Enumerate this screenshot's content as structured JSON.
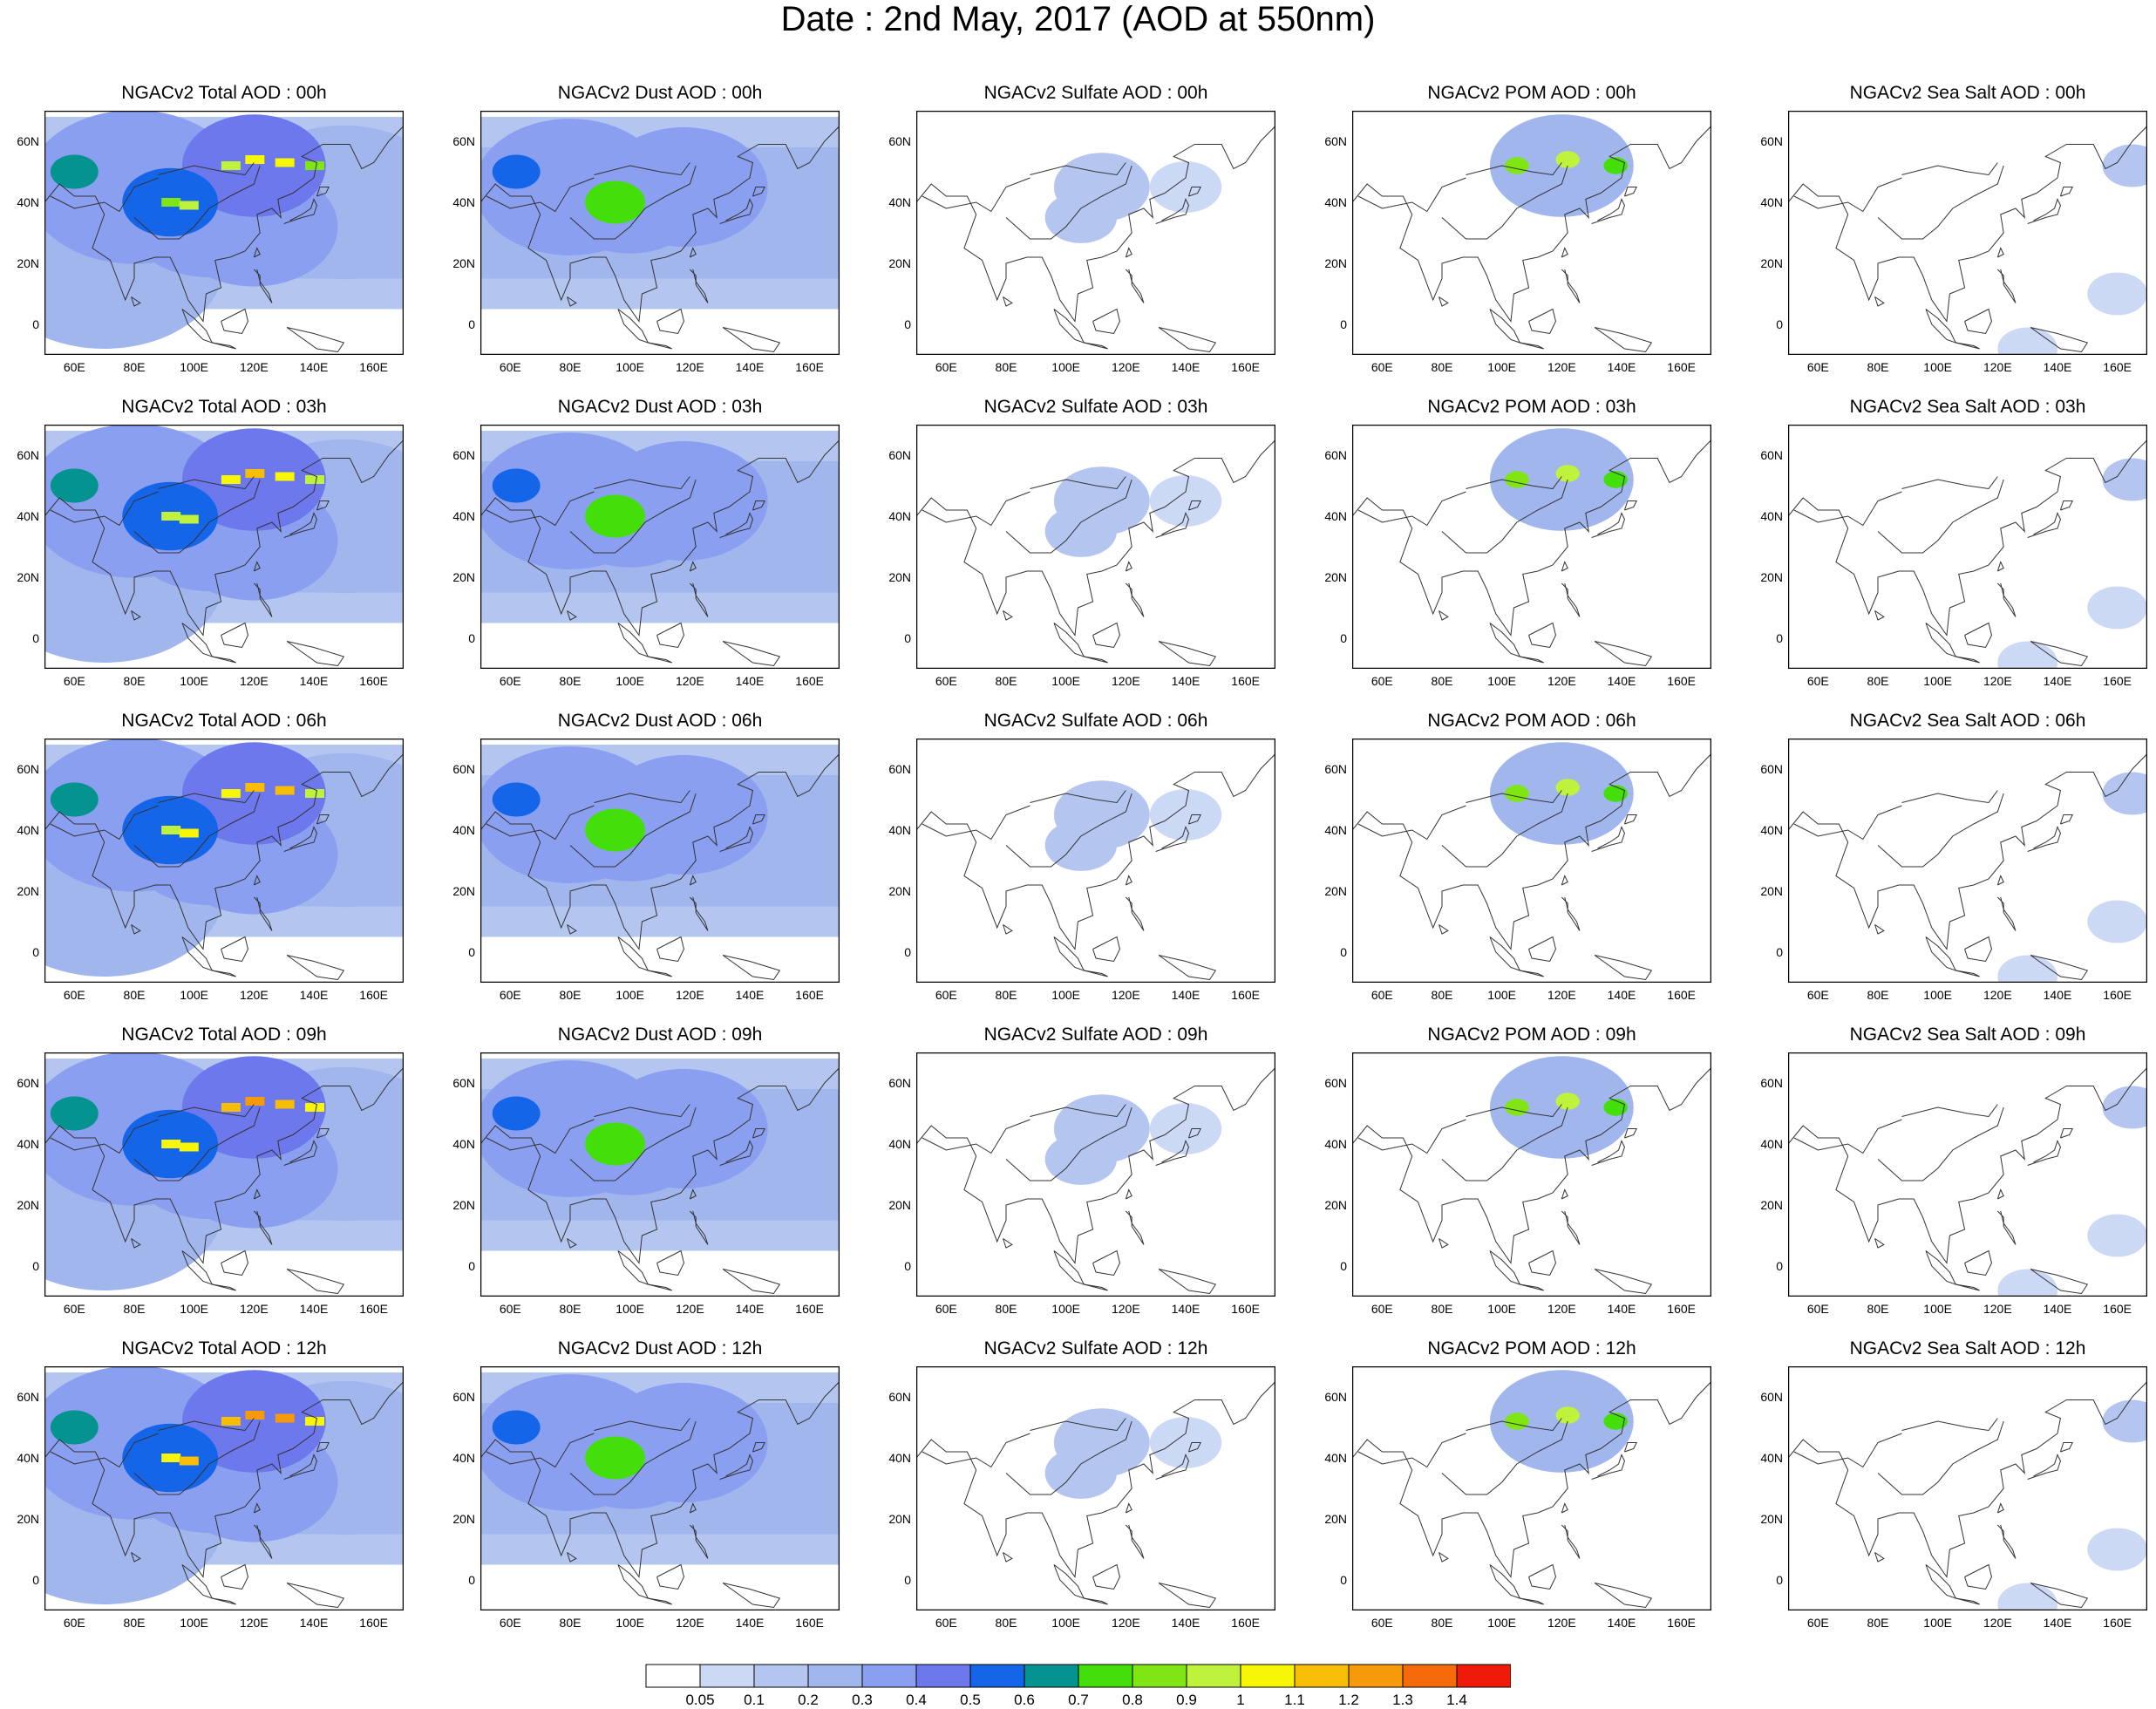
{
  "figure": {
    "title": "Date : 2nd May, 2017 (AOD at 550nm)"
  },
  "rows": [
    "00h",
    "03h",
    "06h",
    "09h",
    "12h"
  ],
  "columns": [
    "total",
    "dust",
    "sulfate",
    "pom",
    "seasalt"
  ],
  "panel_titles": [
    [
      "NGACv2 Total AOD : 00h",
      "NGACv2 Dust AOD : 00h",
      "NGACv2 Sulfate AOD : 00h",
      "NGACv2 POM AOD : 00h",
      "NGACv2 Sea Salt AOD : 00h"
    ],
    [
      "NGACv2 Total AOD : 03h",
      "NGACv2 Dust AOD : 03h",
      "NGACv2 Sulfate AOD : 03h",
      "NGACv2 POM AOD : 03h",
      "NGACv2 Sea Salt AOD : 03h"
    ],
    [
      "NGACv2 Total AOD : 06h",
      "NGACv2 Dust AOD : 06h",
      "NGACv2 Sulfate AOD : 06h",
      "NGACv2 POM AOD : 06h",
      "NGACv2 Sea Salt AOD : 06h"
    ],
    [
      "NGACv2 Total AOD : 09h",
      "NGACv2 Dust AOD : 09h",
      "NGACv2 Sulfate AOD : 09h",
      "NGACv2 POM AOD : 09h",
      "NGACv2 Sea Salt  AOD : 09h"
    ],
    [
      "NGACv2 Total AOD  : 12h",
      "NGACv2 Dust AOD : 12h",
      "NGACv2 Sulfate AOD : 12h",
      "NGACv2 POM  AOD : 12h",
      "NGACv2 Sea Salt  AOD : 12h"
    ]
  ],
  "axes": {
    "x_ticks": [
      "60E",
      "80E",
      "100E",
      "120E",
      "140E",
      "160E"
    ],
    "y_ticks": [
      "60N",
      "40N",
      "20N",
      "0"
    ],
    "x_range_deg": [
      50,
      170
    ],
    "y_range_deg": [
      -10,
      70
    ]
  },
  "colorbar": {
    "labels": [
      "0.05",
      "0.1",
      "0.2",
      "0.3",
      "0.4",
      "0.5",
      "0.6",
      "0.7",
      "0.8",
      "0.9",
      "1",
      "1.1",
      "1.2",
      "1.3",
      "1.4"
    ],
    "colors": [
      "#ffffff",
      "#ccd9f5",
      "#b4c6f0",
      "#a2b6ee",
      "#8b9ff0",
      "#6c78ec",
      "#1565e8",
      "#05938f",
      "#44df0a",
      "#7fe614",
      "#bff23a",
      "#f6f606",
      "#f7bd07",
      "#f69a0c",
      "#f56a0a",
      "#ee1b0b"
    ]
  },
  "chart_data": {
    "type": "heatmap",
    "title": "Date : 2nd May, 2017 (AOD at 550nm)",
    "variables": [
      "Total AOD",
      "Dust AOD",
      "Sulfate AOD",
      "POM AOD",
      "Sea Salt AOD"
    ],
    "times": [
      "00h",
      "03h",
      "06h",
      "09h",
      "12h"
    ],
    "lon_range": [
      50,
      170
    ],
    "lat_range": [
      -10,
      70
    ],
    "levels": [
      0.05,
      0.1,
      0.2,
      0.3,
      0.4,
      0.5,
      0.6,
      0.7,
      0.8,
      0.9,
      1,
      1.1,
      1.2,
      1.3,
      1.4
    ],
    "features": {
      "total": [
        {
          "lon": 60,
          "lat": 50,
          "aod": 0.6,
          "r": 4
        },
        {
          "lon": 92,
          "lat": 40,
          "aod": 0.5,
          "r": 8
        },
        {
          "lon": 120,
          "lat": 52,
          "aod": 0.4,
          "r": 12
        },
        {
          "lon": 105,
          "lat": 35,
          "aod": 0.35,
          "r": 14
        },
        {
          "lon": 80,
          "lat": 45,
          "aod": 0.3,
          "r": 18
        },
        {
          "lon": 120,
          "lat": 32,
          "aod": 0.3,
          "r": 14
        },
        {
          "lon": 150,
          "lat": 40,
          "aod": 0.25,
          "r": 18
        },
        {
          "lon": 70,
          "lat": 20,
          "aod": 0.2,
          "r": 20
        }
      ],
      "total_plume": [
        {
          "lon": 92,
          "lat": 40,
          "aod": 0.85
        },
        {
          "lon": 98,
          "lat": 39,
          "aod": 0.9
        },
        {
          "lon": 112,
          "lat": 52,
          "aod": 0.95
        },
        {
          "lon": 120,
          "lat": 54,
          "aod": 1.05
        },
        {
          "lon": 130,
          "lat": 53,
          "aod": 1.0
        },
        {
          "lon": 140,
          "lat": 52,
          "aod": 0.85
        }
      ],
      "dust": [
        {
          "lon": 62,
          "lat": 50,
          "aod": 0.55,
          "r": 4
        },
        {
          "lon": 95,
          "lat": 40,
          "aod": 0.75,
          "r": 5
        },
        {
          "lon": 100,
          "lat": 40,
          "aod": 0.35,
          "r": 12
        },
        {
          "lon": 80,
          "lat": 45,
          "aod": 0.3,
          "r": 16
        },
        {
          "lon": 118,
          "lat": 45,
          "aod": 0.3,
          "r": 14
        }
      ],
      "sulfate": [
        {
          "lon": 105,
          "lat": 35,
          "aod": 0.15,
          "r": 6
        },
        {
          "lon": 112,
          "lat": 45,
          "aod": 0.1,
          "r": 8
        },
        {
          "lon": 140,
          "lat": 45,
          "aod": 0.08,
          "r": 6
        }
      ],
      "pom": [
        {
          "lon": 105,
          "lat": 52,
          "aod": 0.8,
          "r": 2
        },
        {
          "lon": 122,
          "lat": 54,
          "aod": 0.9,
          "r": 2
        },
        {
          "lon": 138,
          "lat": 52,
          "aod": 0.7,
          "r": 2
        },
        {
          "lon": 120,
          "lat": 52,
          "aod": 0.2,
          "r": 12
        }
      ],
      "seasalt": [
        {
          "lon": 165,
          "lat": 52,
          "aod": 0.1,
          "r": 5
        },
        {
          "lon": 160,
          "lat": 10,
          "aod": 0.08,
          "r": 5
        },
        {
          "lon": 130,
          "lat": -8,
          "aod": 0.08,
          "r": 5
        }
      ]
    }
  }
}
